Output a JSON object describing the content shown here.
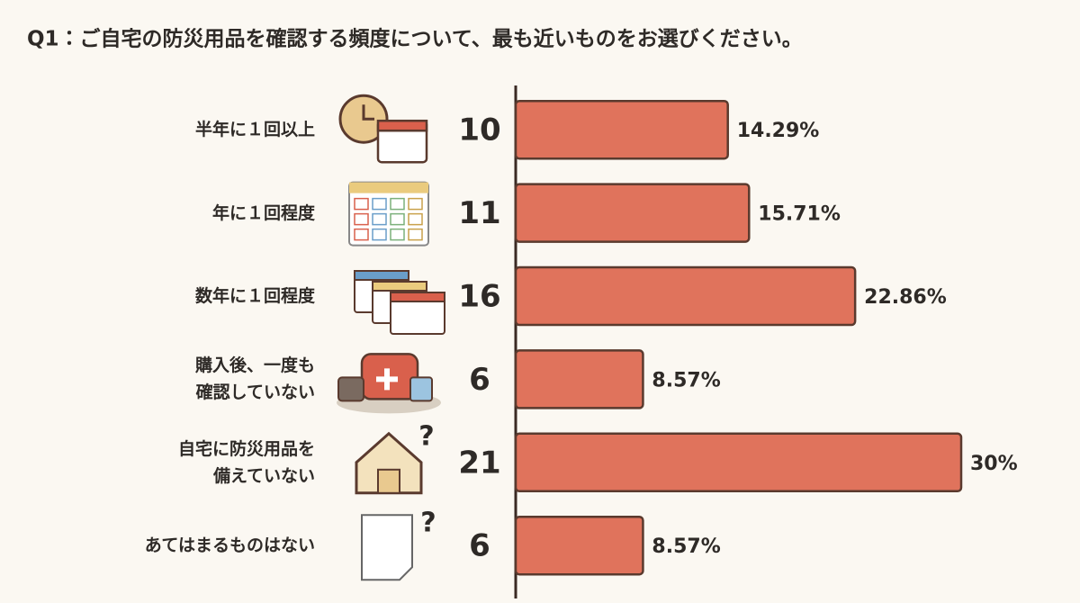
{
  "chart_data": {
    "type": "hbar",
    "title": "Q1：ご自宅の防災用品を確認する頻度について、最も近いものをお選びください。",
    "categories": [
      "半年に１回以上",
      "年に１回程度",
      "数年に１回程度",
      "購入後、一度も\n確認していない",
      "自宅に防災用品を\n備えていない",
      "あてはまるものはない"
    ],
    "values": [
      10,
      11,
      16,
      6,
      21,
      6
    ],
    "color": "#e0735c",
    "shares": {
      "values": [
        14.29,
        15.71,
        22.86,
        8.57,
        30,
        8.57
      ],
      "value_labels": [
        "14.29%",
        "15.71%",
        "22.86%",
        "8.57%",
        "30%",
        "8.57%"
      ]
    }
  }
}
